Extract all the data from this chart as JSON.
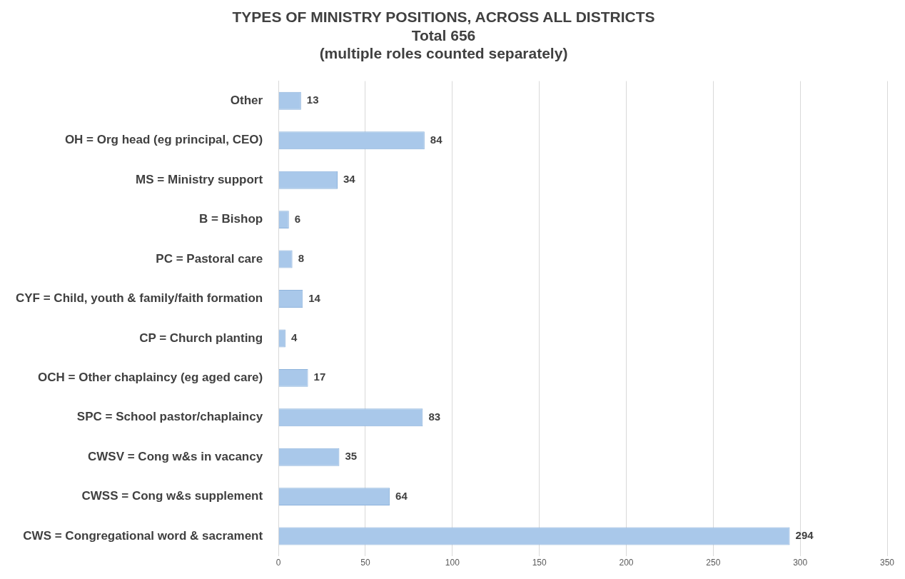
{
  "chart_data": {
    "type": "bar",
    "orientation": "horizontal",
    "title": "TYPES OF MINISTRY POSITIONS, ACROSS ALL DISTRICTS\nTotal 656\n(multiple roles counted separately)",
    "categories": [
      "Other",
      "OH = Org head (eg principal, CEO)",
      "MS = Ministry support",
      "B = Bishop",
      "PC = Pastoral care",
      "CYF = Child, youth & family/faith formation",
      "CP = Church planting",
      "OCH = Other chaplaincy (eg aged care)",
      "SPC = School pastor/chaplaincy",
      "CWSV = Cong w&s in vacancy",
      "CWSS = Cong w&s supplement",
      "CWS = Congregational word & sacrament"
    ],
    "values": [
      13,
      84,
      34,
      6,
      8,
      14,
      4,
      17,
      83,
      35,
      64,
      294
    ],
    "color": "#a9c8ea",
    "xlim": [
      0,
      350
    ],
    "xticks": [
      0,
      50,
      100,
      150,
      200,
      250,
      300,
      350
    ],
    "grid": "x",
    "data_labels": true,
    "legend": false
  }
}
